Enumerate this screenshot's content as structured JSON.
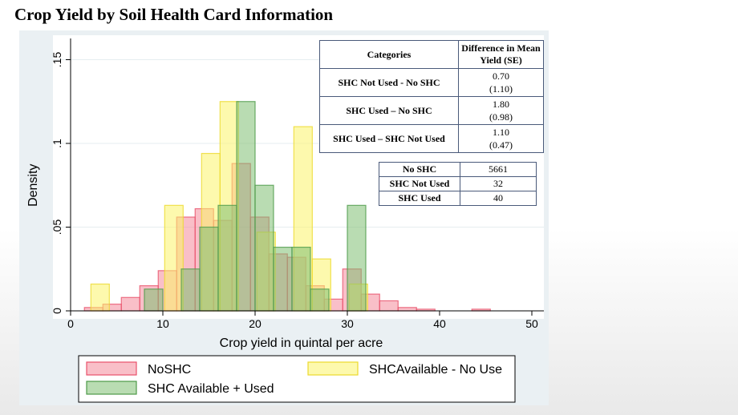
{
  "title": "Crop Yield by Soil Health Card Information",
  "chart_data": {
    "type": "histogram",
    "xlabel": "Crop yield in quintal per acre",
    "ylabel": "Density",
    "xlim": [
      -2,
      51
    ],
    "ylim": [
      0,
      0.15
    ],
    "xticks": [
      0,
      10,
      20,
      30,
      40,
      50
    ],
    "yticks": [
      0,
      0.05,
      0.1,
      0.15
    ],
    "yticklabels": [
      "0",
      ".05",
      ".1",
      ".15"
    ],
    "grid": "horizontal",
    "legend_position": "bottom",
    "series": [
      {
        "name": "NoSHC",
        "color": "#f48a9a",
        "edge": "#e8506a",
        "bins": [
          {
            "x0": 1.5,
            "x1": 3.5,
            "d": 0.002
          },
          {
            "x0": 3.5,
            "x1": 5.5,
            "d": 0.004
          },
          {
            "x0": 5.5,
            "x1": 7.5,
            "d": 0.008
          },
          {
            "x0": 7.5,
            "x1": 9.5,
            "d": 0.015
          },
          {
            "x0": 9.5,
            "x1": 11.5,
            "d": 0.024
          },
          {
            "x0": 11.5,
            "x1": 13.5,
            "d": 0.056
          },
          {
            "x0": 13.5,
            "x1": 15.5,
            "d": 0.061
          },
          {
            "x0": 15.5,
            "x1": 17.5,
            "d": 0.054
          },
          {
            "x0": 17.5,
            "x1": 19.5,
            "d": 0.088
          },
          {
            "x0": 19.5,
            "x1": 21.5,
            "d": 0.056
          },
          {
            "x0": 21.5,
            "x1": 23.5,
            "d": 0.034
          },
          {
            "x0": 23.5,
            "x1": 25.5,
            "d": 0.032
          },
          {
            "x0": 25.5,
            "x1": 27.5,
            "d": 0.015
          },
          {
            "x0": 27.5,
            "x1": 29.5,
            "d": 0.007
          },
          {
            "x0": 29.5,
            "x1": 31.5,
            "d": 0.025
          },
          {
            "x0": 31.5,
            "x1": 33.5,
            "d": 0.01
          },
          {
            "x0": 33.5,
            "x1": 35.5,
            "d": 0.006
          },
          {
            "x0": 35.5,
            "x1": 37.5,
            "d": 0.002
          },
          {
            "x0": 37.5,
            "x1": 39.5,
            "d": 0.001
          },
          {
            "x0": 43.5,
            "x1": 45.5,
            "d": 0.001
          }
        ]
      },
      {
        "name": "SHCAvailable - No Use",
        "color": "#fbf46a",
        "edge": "#ecd92c",
        "bins": [
          {
            "x0": 2.2,
            "x1": 4.2,
            "d": 0.016
          },
          {
            "x0": 10.2,
            "x1": 12.2,
            "d": 0.063
          },
          {
            "x0": 14.2,
            "x1": 16.2,
            "d": 0.094
          },
          {
            "x0": 16.2,
            "x1": 18.2,
            "d": 0.125
          },
          {
            "x0": 20.2,
            "x1": 22.2,
            "d": 0.047
          },
          {
            "x0": 24.2,
            "x1": 26.2,
            "d": 0.11
          },
          {
            "x0": 26.2,
            "x1": 28.2,
            "d": 0.031
          },
          {
            "x0": 30.2,
            "x1": 32.2,
            "d": 0.016
          }
        ]
      },
      {
        "name": "SHC Available + Used",
        "color": "#7fbf72",
        "edge": "#4c9a48",
        "bins": [
          {
            "x0": 8,
            "x1": 10,
            "d": 0.013
          },
          {
            "x0": 12,
            "x1": 14,
            "d": 0.025
          },
          {
            "x0": 14,
            "x1": 16,
            "d": 0.05
          },
          {
            "x0": 16,
            "x1": 18,
            "d": 0.063
          },
          {
            "x0": 18,
            "x1": 20,
            "d": 0.125
          },
          {
            "x0": 20,
            "x1": 22,
            "d": 0.075
          },
          {
            "x0": 22,
            "x1": 24,
            "d": 0.038
          },
          {
            "x0": 24,
            "x1": 26,
            "d": 0.038
          },
          {
            "x0": 26,
            "x1": 28,
            "d": 0.013
          },
          {
            "x0": 30,
            "x1": 32,
            "d": 0.063
          }
        ]
      }
    ],
    "legend": [
      {
        "label": "NoSHC",
        "color": "#f48a9a",
        "edge": "#e8506a"
      },
      {
        "label": "SHCAvailable - No Use",
        "color": "#fbf46a",
        "edge": "#ecd92c"
      },
      {
        "label": "SHC Available + Used",
        "color": "#7fbf72",
        "edge": "#4c9a48"
      }
    ]
  },
  "stats_table": {
    "header": [
      "Categories",
      "Difference in Mean Yield (SE)"
    ],
    "rows": [
      {
        "category": "SHC Not Used - No SHC",
        "diff": "0.70",
        "se": "(1.10)"
      },
      {
        "category": "SHC Used – No SHC",
        "diff": "1.80",
        "se": "(0.98)"
      },
      {
        "category": "SHC Used – SHC Not Used",
        "diff": "1.10",
        "se": "(0.47)"
      }
    ]
  },
  "counts_table": {
    "rows": [
      {
        "label": "No SHC",
        "value": "5661"
      },
      {
        "label": "SHC Not Used",
        "value": "32"
      },
      {
        "label": "SHC Used",
        "value": "40"
      }
    ]
  }
}
